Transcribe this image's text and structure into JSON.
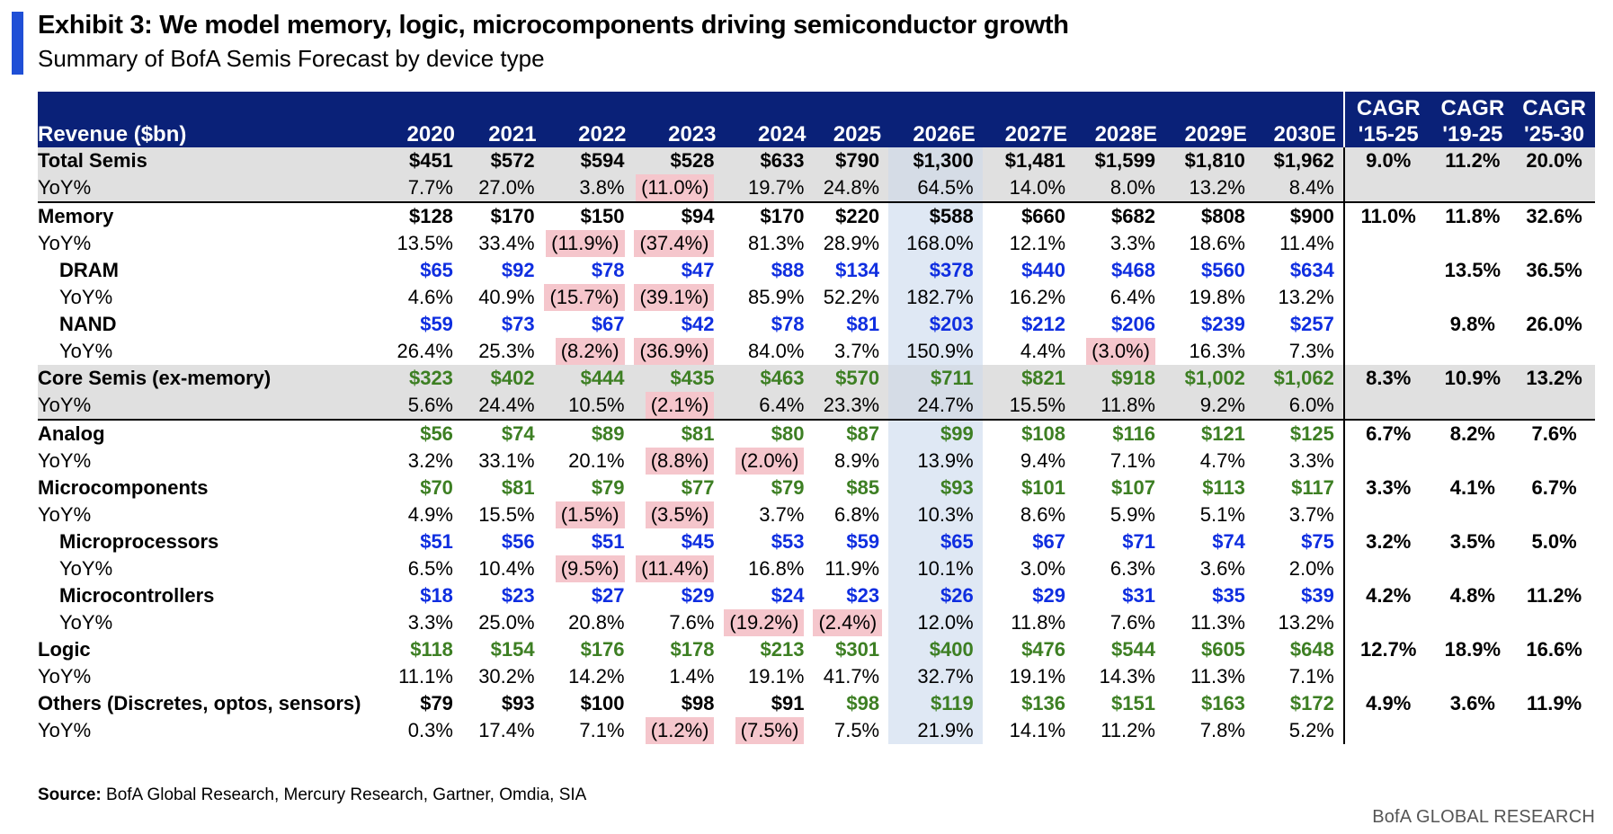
{
  "title": "Exhibit 3: We model memory, logic, microcomponents driving semiconductor growth",
  "subtitle": "Summary of BofA Semis Forecast by device type",
  "header": {
    "label": "Revenue ($bn)",
    "years": [
      "2020",
      "2021",
      "2022",
      "2023",
      "2024",
      "2025",
      "2026E",
      "2027E",
      "2028E",
      "2029E",
      "2030E"
    ],
    "cagr": [
      [
        "CAGR",
        "'15-25"
      ],
      [
        "CAGR",
        "'19-25"
      ],
      [
        "CAGR",
        "'25-30"
      ]
    ]
  },
  "rows": [
    {
      "label": "Total Semis",
      "kind": "bold",
      "values": [
        "$451",
        "$572",
        "$594",
        "$528",
        "$633",
        "$790",
        "$1,300",
        "$1,481",
        "$1,599",
        "$1,810",
        "$1,962"
      ],
      "cagr": [
        "9.0%",
        "11.2%",
        "20.0%"
      ]
    },
    {
      "label": "YoY%",
      "kind": "yoy",
      "values": [
        "7.7%",
        "27.0%",
        "3.8%",
        "(11.0%)",
        "19.7%",
        "24.8%",
        "64.5%",
        "14.0%",
        "8.0%",
        "13.2%",
        "8.4%"
      ],
      "cagr": [
        "",
        "",
        ""
      ]
    },
    {
      "label": "Memory",
      "kind": "bold",
      "values": [
        "$128",
        "$170",
        "$150",
        "$94",
        "$170",
        "$220",
        "$588",
        "$660",
        "$682",
        "$808",
        "$900"
      ],
      "cagr": [
        "11.0%",
        "11.8%",
        "32.6%"
      ]
    },
    {
      "label": "YoY%",
      "kind": "yoy",
      "values": [
        "13.5%",
        "33.4%",
        "(11.9%)",
        "(37.4%)",
        "81.3%",
        "28.9%",
        "168.0%",
        "12.1%",
        "3.3%",
        "18.6%",
        "11.4%"
      ],
      "cagr": [
        "",
        "",
        ""
      ]
    },
    {
      "label": "DRAM",
      "kind": "bold",
      "values": [
        "$65",
        "$92",
        "$78",
        "$47",
        "$88",
        "$134",
        "$378",
        "$440",
        "$468",
        "$560",
        "$634"
      ],
      "cagr": [
        "",
        "13.5%",
        "36.5%"
      ]
    },
    {
      "label": "YoY%",
      "kind": "yoy",
      "values": [
        "4.6%",
        "40.9%",
        "(15.7%)",
        "(39.1%)",
        "85.9%",
        "52.2%",
        "182.7%",
        "16.2%",
        "6.4%",
        "19.8%",
        "13.2%"
      ],
      "cagr": [
        "",
        "",
        ""
      ]
    },
    {
      "label": "NAND",
      "kind": "bold",
      "values": [
        "$59",
        "$73",
        "$67",
        "$42",
        "$78",
        "$81",
        "$203",
        "$212",
        "$206",
        "$239",
        "$257"
      ],
      "cagr": [
        "",
        "9.8%",
        "26.0%"
      ]
    },
    {
      "label": "YoY%",
      "kind": "yoy",
      "values": [
        "26.4%",
        "25.3%",
        "(8.2%)",
        "(36.9%)",
        "84.0%",
        "3.7%",
        "150.9%",
        "4.4%",
        "(3.0%)",
        "16.3%",
        "7.3%"
      ],
      "cagr": [
        "",
        "",
        ""
      ]
    },
    {
      "label": "Core Semis (ex-memory)",
      "kind": "bold",
      "values": [
        "$323",
        "$402",
        "$444",
        "$435",
        "$463",
        "$570",
        "$711",
        "$821",
        "$918",
        "$1,002",
        "$1,062"
      ],
      "cagr": [
        "8.3%",
        "10.9%",
        "13.2%"
      ]
    },
    {
      "label": "YoY%",
      "kind": "yoy",
      "values": [
        "5.6%",
        "24.4%",
        "10.5%",
        "(2.1%)",
        "6.4%",
        "23.3%",
        "24.7%",
        "15.5%",
        "11.8%",
        "9.2%",
        "6.0%"
      ],
      "cagr": [
        "",
        "",
        ""
      ]
    },
    {
      "label": "Analog",
      "kind": "bold",
      "values": [
        "$56",
        "$74",
        "$89",
        "$81",
        "$80",
        "$87",
        "$99",
        "$108",
        "$116",
        "$121",
        "$125"
      ],
      "cagr": [
        "6.7%",
        "8.2%",
        "7.6%"
      ]
    },
    {
      "label": "YoY%",
      "kind": "yoy",
      "values": [
        "3.2%",
        "33.1%",
        "20.1%",
        "(8.8%)",
        "(2.0%)",
        "8.9%",
        "13.9%",
        "9.4%",
        "7.1%",
        "4.7%",
        "3.3%"
      ],
      "cagr": [
        "",
        "",
        ""
      ]
    },
    {
      "label": "Microcomponents",
      "kind": "bold",
      "values": [
        "$70",
        "$81",
        "$79",
        "$77",
        "$79",
        "$85",
        "$93",
        "$101",
        "$107",
        "$113",
        "$117"
      ],
      "cagr": [
        "3.3%",
        "4.1%",
        "6.7%"
      ]
    },
    {
      "label": "YoY%",
      "kind": "yoy",
      "values": [
        "4.9%",
        "15.5%",
        "(1.5%)",
        "(3.5%)",
        "3.7%",
        "6.8%",
        "10.3%",
        "8.6%",
        "5.9%",
        "5.1%",
        "3.7%"
      ],
      "cagr": [
        "",
        "",
        ""
      ]
    },
    {
      "label": "Microprocessors",
      "kind": "bold",
      "values": [
        "$51",
        "$56",
        "$51",
        "$45",
        "$53",
        "$59",
        "$65",
        "$67",
        "$71",
        "$74",
        "$75"
      ],
      "cagr": [
        "3.2%",
        "3.5%",
        "5.0%"
      ]
    },
    {
      "label": "YoY%",
      "kind": "yoy",
      "values": [
        "6.5%",
        "10.4%",
        "(9.5%)",
        "(11.4%)",
        "16.8%",
        "11.9%",
        "10.1%",
        "3.0%",
        "6.3%",
        "3.6%",
        "2.0%"
      ],
      "cagr": [
        "",
        "",
        ""
      ]
    },
    {
      "label": "Microcontrollers",
      "kind": "bold",
      "values": [
        "$18",
        "$23",
        "$27",
        "$29",
        "$24",
        "$23",
        "$26",
        "$29",
        "$31",
        "$35",
        "$39"
      ],
      "cagr": [
        "4.2%",
        "4.8%",
        "11.2%"
      ]
    },
    {
      "label": "YoY%",
      "kind": "yoy",
      "values": [
        "3.3%",
        "25.0%",
        "20.8%",
        "7.6%",
        "(19.2%)",
        "(2.4%)",
        "12.0%",
        "11.8%",
        "7.6%",
        "11.3%",
        "13.2%"
      ],
      "cagr": [
        "",
        "",
        ""
      ]
    },
    {
      "label": "Logic",
      "kind": "bold",
      "values": [
        "$118",
        "$154",
        "$176",
        "$178",
        "$213",
        "$301",
        "$400",
        "$476",
        "$544",
        "$605",
        "$648"
      ],
      "cagr": [
        "12.7%",
        "18.9%",
        "16.6%"
      ]
    },
    {
      "label": "YoY%",
      "kind": "yoy",
      "values": [
        "11.1%",
        "30.2%",
        "14.2%",
        "1.4%",
        "19.1%",
        "41.7%",
        "32.7%",
        "19.1%",
        "14.3%",
        "11.3%",
        "7.1%"
      ],
      "cagr": [
        "",
        "",
        ""
      ]
    },
    {
      "label": "Others (Discretes, optos, sensors)",
      "kind": "bold",
      "values": [
        "$79",
        "$93",
        "$100",
        "$98",
        "$91",
        "$98",
        "$119",
        "$136",
        "$151",
        "$163",
        "$172"
      ],
      "cagr": [
        "4.9%",
        "3.6%",
        "11.9%"
      ]
    },
    {
      "label": "YoY%",
      "kind": "yoy",
      "values": [
        "0.3%",
        "17.4%",
        "7.1%",
        "(1.2%)",
        "(7.5%)",
        "7.5%",
        "21.9%",
        "14.1%",
        "11.2%",
        "7.8%",
        "5.2%"
      ],
      "cagr": [
        "",
        "",
        ""
      ]
    }
  ],
  "source": {
    "label": "Source:",
    "text": " BofA Global Research, Mercury Research, Gartner, Omdia, SIA"
  },
  "brand": "BofA GLOBAL RESEARCH",
  "colors": {
    "accent": "#1f4fd6",
    "header_bg": "#0a2178",
    "blue": "#0f2ee0",
    "green": "#3d7f23",
    "negative_bg": "#f5c6cc",
    "highlight_col": "#dfe8f4"
  }
}
